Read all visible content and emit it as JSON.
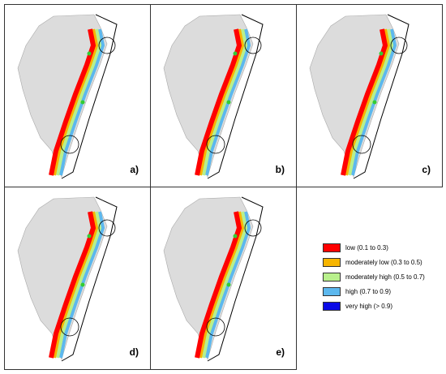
{
  "panels": [
    {
      "label": "a)"
    },
    {
      "label": "b)"
    },
    {
      "label": "c)"
    },
    {
      "label": "d)"
    },
    {
      "label": "e)"
    }
  ],
  "legend": {
    "items": [
      {
        "label": "low (0.1 to 0.3)",
        "color": "#ff0000"
      },
      {
        "label": "moderately low (0.3 to 0.5)",
        "color": "#f7b500"
      },
      {
        "label": "moderately high (0.5 to 0.7)",
        "color": "#b8f08c"
      },
      {
        "label": "high (0.7 to 0.9)",
        "color": "#5cb8ee"
      },
      {
        "label": "very high (> 0.9)",
        "color": "#0a0ae6"
      }
    ]
  }
}
